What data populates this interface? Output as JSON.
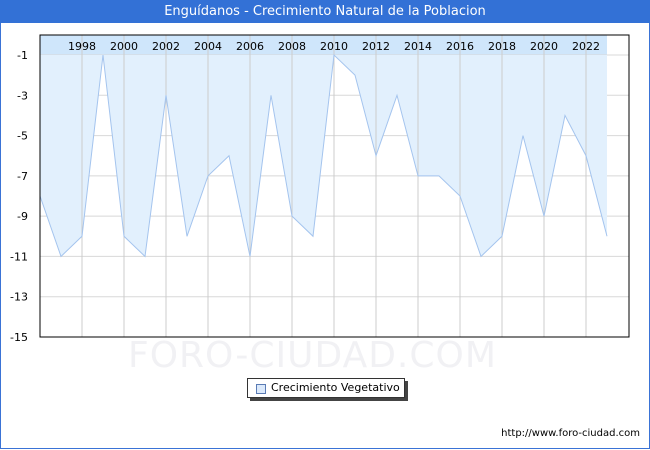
{
  "header": {
    "title": "Enguídanos - Crecimiento Natural de la Poblacion"
  },
  "legend": {
    "label": "Crecimiento Vegetativo",
    "swatch_color": "#dbe9fb"
  },
  "footer": {
    "url": "http://www.foro-ciudad.com"
  },
  "watermark": "FORO-CIUDAD.COM",
  "colors": {
    "title_bg": "#3371d6",
    "area_fill": "#e2f0fd",
    "line": "#a4c4ee",
    "top_band": "#cfe6fb",
    "grid": "#d8d8d8"
  },
  "chart_data": {
    "type": "area",
    "title": "Enguídanos - Crecimiento Natural de la Poblacion",
    "xlabel": "",
    "ylabel": "",
    "x": [
      1996,
      1997,
      1998,
      1999,
      2000,
      2001,
      2002,
      2003,
      2004,
      2005,
      2006,
      2007,
      2008,
      2009,
      2010,
      2011,
      2012,
      2013,
      2014,
      2015,
      2016,
      2017,
      2018,
      2019,
      2020,
      2021,
      2022,
      2023
    ],
    "series": [
      {
        "name": "Crecimiento Vegetativo",
        "values": [
          -8,
          -11,
          -10,
          -1,
          -10,
          -11,
          -3,
          -10,
          -7,
          -6,
          -11,
          -3,
          -9,
          -10,
          -1,
          -2,
          -6,
          -3,
          -7,
          -7,
          -8,
          -11,
          -10,
          -5,
          -9,
          -4,
          -6,
          -10
        ]
      }
    ],
    "x_tick_labels": [
      "1998",
      "2000",
      "2002",
      "2004",
      "2006",
      "2008",
      "2010",
      "2012",
      "2014",
      "2016",
      "2018",
      "2020",
      "2022"
    ],
    "y_tick_labels": [
      "-1",
      "-3",
      "-5",
      "-7",
      "-9",
      "-11",
      "-13",
      "-15"
    ],
    "ylim": [
      -15,
      0
    ],
    "grid": true,
    "legend_position": "bottom-center"
  }
}
